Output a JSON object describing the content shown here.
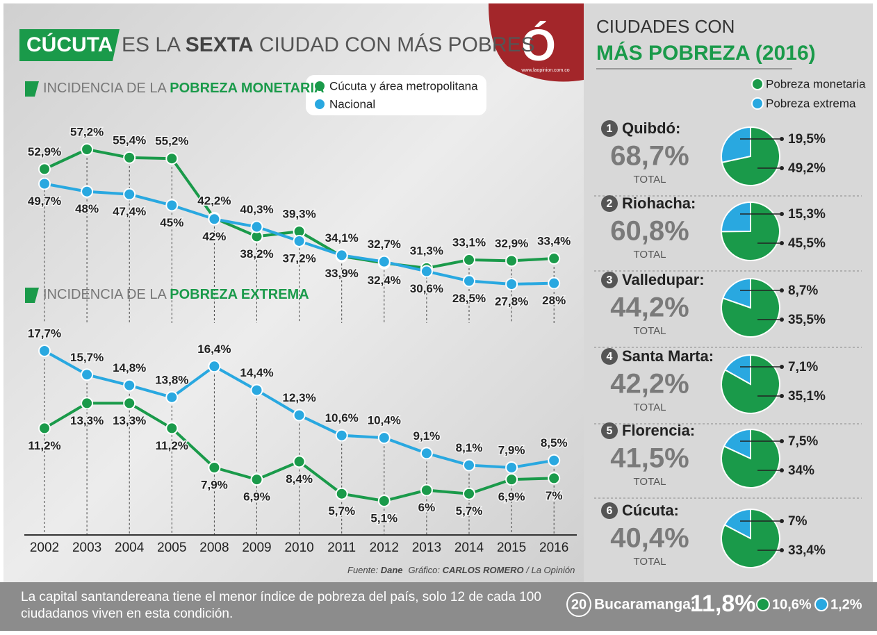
{
  "header": {
    "title_parts": [
      "CÚCUTA",
      "ES LA ",
      "SEXTA",
      " CIUDAD CON MÁS POBRES"
    ],
    "logo": "Ó",
    "url": "www.laopinion.com.co"
  },
  "chart_data": {
    "type": "line",
    "categories": [
      "2002",
      "2003",
      "2004",
      "2005",
      "2008",
      "2009",
      "2010",
      "2011",
      "2012",
      "2013",
      "2014",
      "2015",
      "2016"
    ],
    "series": [
      {
        "name": "Cúcuta y área metropolitana",
        "color": "#1a9a4a"
      },
      {
        "name": "Nacional",
        "color": "#29a8e0"
      }
    ],
    "panels": [
      {
        "title_parts": [
          "INCIDENCIA DE LA ",
          "POBREZA MONETARIA"
        ],
        "series": [
          {
            "values": [
              52.9,
              57.2,
              55.4,
              55.2,
              42.2,
              38.2,
              39.3,
              33.9,
              32.4,
              31.3,
              33.1,
              32.9,
              33.4
            ],
            "value_labels": [
              "52,9%",
              "57,2%",
              "55,4%",
              "55,2%",
              "42,2%",
              "38,2%",
              "39,3%",
              "33,9%",
              "32,4%",
              "31,3%",
              "33,1%",
              "32,9%",
              "33,4%"
            ]
          },
          {
            "values": [
              49.7,
              48,
              47.4,
              45,
              42,
              40.3,
              37.2,
              34.1,
              32.7,
              30.6,
              28.5,
              27.8,
              28
            ],
            "value_labels": [
              "49,7%",
              "48%",
              "47,4%",
              "45%",
              "42%",
              "40,3%",
              "37,2%",
              "34,1%",
              "32,7%",
              "30,6%",
              "28,5%",
              "27,8%",
              "28%"
            ]
          }
        ]
      },
      {
        "title_parts": [
          "INCIDENCIA DE LA ",
          "POBREZA EXTREMA"
        ],
        "series": [
          {
            "values": [
              11.2,
              13.3,
              13.3,
              11.2,
              7.9,
              6.9,
              8.4,
              5.7,
              5.1,
              6,
              5.7,
              6.9,
              7
            ],
            "value_labels": [
              "11,2%",
              "13,3%",
              "13,3%",
              "11,2%",
              "7,9%",
              "6,9%",
              "8,4%",
              "5,7%",
              "5,1%",
              "6%",
              "5,7%",
              "6,9%",
              "7%"
            ]
          },
          {
            "values": [
              17.7,
              15.7,
              14.8,
              13.8,
              16.4,
              14.4,
              12.3,
              10.6,
              10.4,
              9.1,
              8.1,
              7.9,
              8.5
            ],
            "value_labels": [
              "17,7%",
              "15,7%",
              "14,8%",
              "13,8%",
              "16,4%",
              "14,4%",
              "12,3%",
              "10,6%",
              "10,4%",
              "9,1%",
              "8,1%",
              "7,9%",
              "8,5%"
            ]
          }
        ]
      }
    ],
    "source_parts": [
      "Fuente: ",
      "Dane",
      "Gráfico: ",
      "CARLOS ROMERO",
      " / La Opinión"
    ]
  },
  "ranking": {
    "title_parts": [
      "CIUDADES CON",
      "MÁS POBREZA (2016)"
    ],
    "legend": [
      "Pobreza monetaria",
      "Pobreza extrema"
    ],
    "colors": [
      "#1a9a4a",
      "#29a8e0"
    ],
    "total_label": "TOTAL",
    "cities": [
      {
        "rank": "1",
        "name": "Quibdó:",
        "total": "68,7%",
        "values": [
          49.2,
          19.5
        ],
        "value_labels": [
          "49,2%",
          "19,5%"
        ]
      },
      {
        "rank": "2",
        "name": "Riohacha:",
        "total": "60,8%",
        "values": [
          45.5,
          15.3
        ],
        "value_labels": [
          "45,5%",
          "15,3%"
        ]
      },
      {
        "rank": "3",
        "name": "Valledupar:",
        "total": "44,2%",
        "values": [
          35.5,
          8.7
        ],
        "value_labels": [
          "35,5%",
          "8,7%"
        ]
      },
      {
        "rank": "4",
        "name": "Santa Marta:",
        "total": "42,2%",
        "values": [
          35.1,
          7.1
        ],
        "value_labels": [
          "35,1%",
          "7,1%"
        ]
      },
      {
        "rank": "5",
        "name": "Florencia:",
        "total": "41,5%",
        "values": [
          34,
          7.5
        ],
        "value_labels": [
          "34%",
          "7,5%"
        ]
      },
      {
        "rank": "6",
        "name": "Cúcuta:",
        "total": "40,4%",
        "values": [
          33.4,
          7
        ],
        "value_labels": [
          "33,4%",
          "7%"
        ]
      }
    ]
  },
  "footer": {
    "text_lines": [
      "La capital santandereana tiene el menor índice de pobreza del país, solo 12 de cada 100",
      "ciudadanos viven en esta condición."
    ],
    "rank": "20",
    "city": "Bucaramanga:",
    "total": "11,8%",
    "values": [
      "10,6%",
      "1,2%"
    ]
  }
}
